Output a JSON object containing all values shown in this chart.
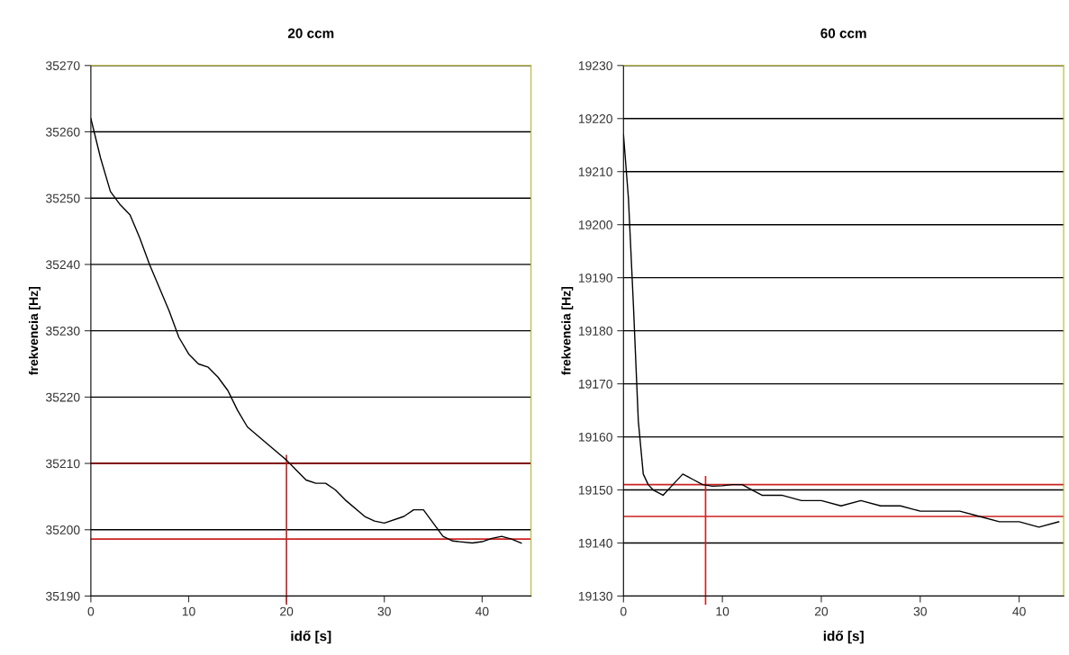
{
  "chart_data": [
    {
      "type": "line",
      "title": "20 ccm",
      "xlabel": "idő [s]",
      "ylabel": "frekvencia [Hz]",
      "xlim": [
        0,
        45
      ],
      "xticks": [
        0,
        10,
        20,
        30,
        40
      ],
      "ylim": [
        35190,
        35270
      ],
      "yticks": [
        35190,
        35200,
        35210,
        35220,
        35230,
        35240,
        35250,
        35260,
        35270
      ],
      "grid": "y",
      "legend": false,
      "x": [
        0,
        1,
        2,
        3,
        4,
        5,
        6,
        8,
        9,
        10,
        11,
        12,
        13,
        14,
        15,
        16,
        18,
        20,
        21,
        22,
        23,
        24,
        25,
        26,
        28,
        29,
        30,
        32,
        33,
        34,
        35,
        36,
        37,
        39,
        40,
        41,
        42,
        43,
        44
      ],
      "series": [
        {
          "color": "#000000",
          "values": [
            35262,
            35256,
            35251,
            35249,
            35247.5,
            35244,
            35240,
            35233,
            35229,
            35226.5,
            35225,
            35224.5,
            35223,
            35221,
            35218,
            35215.5,
            35213,
            35210.5,
            35209,
            35207.5,
            35207,
            35207,
            35206,
            35204.5,
            35202,
            35201.3,
            35201,
            35202,
            35203,
            35203,
            35201,
            35199,
            35198.3,
            35198,
            35198.2,
            35198.7,
            35199,
            35198.6,
            35198
          ]
        }
      ],
      "ref_lines": [
        {
          "axis": "y",
          "value": 35210,
          "color": "#8b0000"
        },
        {
          "axis": "y",
          "value": 35198.6,
          "color": "#cc2222"
        },
        {
          "axis": "x",
          "value": 20,
          "color": "#cc2222"
        }
      ]
    },
    {
      "type": "line",
      "title": "60 ccm",
      "xlabel": "idő [s]",
      "ylabel": "frekvencia [Hz]",
      "xlim": [
        0,
        44.5
      ],
      "xticks": [
        0,
        10,
        20,
        30,
        40
      ],
      "ylim": [
        19130,
        19230
      ],
      "yticks": [
        19130,
        19140,
        19150,
        19160,
        19170,
        19180,
        19190,
        19200,
        19210,
        19220,
        19230
      ],
      "grid": "y",
      "legend": false,
      "x": [
        0,
        0.5,
        1,
        1.5,
        2,
        2.5,
        3,
        4,
        5,
        6,
        7,
        8,
        9,
        10,
        11,
        12,
        13,
        14,
        16,
        18,
        20,
        22,
        24,
        26,
        28,
        30,
        34,
        36,
        38,
        40,
        42,
        44
      ],
      "series": [
        {
          "color": "#000000",
          "values": [
            19217,
            19205,
            19185,
            19163,
            19153,
            19151,
            19150,
            19149,
            19151,
            19153,
            19152,
            19151,
            19150.7,
            19150.8,
            19151,
            19151,
            19150,
            19149,
            19149,
            19148,
            19148,
            19147,
            19148,
            19147,
            19147,
            19146,
            19146,
            19145,
            19144,
            19144,
            19143,
            19144
          ]
        }
      ],
      "ref_lines": [
        {
          "axis": "y",
          "value": 19151,
          "color": "#cc2222"
        },
        {
          "axis": "y",
          "value": 19145,
          "color": "#cc2222"
        },
        {
          "axis": "x",
          "value": 8.3,
          "color": "#cc2222"
        }
      ]
    }
  ]
}
